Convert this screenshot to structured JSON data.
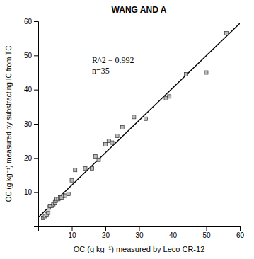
{
  "chart_data": {
    "type": "scatter",
    "title": "WANG AND A",
    "x_label": "OC (g kg⁻¹) measured by Leco CR-12",
    "y_label": "OC (g kg⁻¹) measured by substracting IC from TC",
    "series": [
      {
        "type": "scatter",
        "marker": "square",
        "color": "#bbbbbb",
        "x": [
          1.5,
          2.0,
          2.5,
          3.0,
          3.2,
          3.5,
          4.0,
          4.5,
          5.0,
          5.2,
          5.5,
          6.0,
          6.5,
          7.0,
          7.5,
          8.0,
          9.0,
          10.0,
          11.0,
          14.0,
          16.0,
          17.0,
          18.0,
          20.0,
          21.0,
          22.0,
          23.5,
          25.0,
          28.5,
          32.0,
          38.0,
          39.0,
          44.0,
          50.0,
          56.0
        ],
        "values": [
          2.5,
          3.0,
          3.5,
          4.0,
          5.5,
          6.0,
          6.0,
          6.5,
          7.0,
          7.5,
          8.0,
          8.0,
          8.5,
          8.5,
          9.0,
          9.0,
          9.5,
          13.5,
          16.5,
          17.0,
          17.0,
          20.5,
          19.5,
          24.0,
          25.0,
          24.5,
          26.5,
          29.0,
          32.0,
          31.5,
          37.5,
          38.0,
          44.5,
          45.0,
          56.5
        ]
      },
      {
        "type": "line",
        "line_style": "solid",
        "color": "#000000",
        "x": [
          0,
          60
        ],
        "values": [
          2.6255,
          59.378
        ]
      }
    ],
    "annotations": [
      {
        "text": "R^2 = 0.992\nn=35",
        "x": 16,
        "y": 50
      }
    ],
    "xlim": [
      0,
      60
    ],
    "ylim": [
      0,
      60
    ],
    "xticks": [
      {
        "value": 0,
        "label": null
      },
      10,
      20,
      30,
      40,
      50,
      60
    ],
    "yticks": [
      {
        "value": 0,
        "label": null
      },
      10,
      20,
      30,
      40,
      50,
      60
    ],
    "grid": false
  }
}
